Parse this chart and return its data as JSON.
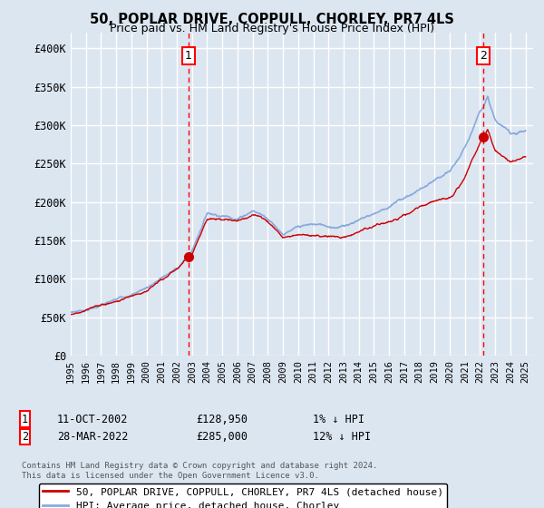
{
  "title": "50, POPLAR DRIVE, COPPULL, CHORLEY, PR7 4LS",
  "subtitle": "Price paid vs. HM Land Registry's House Price Index (HPI)",
  "background_color": "#dce6f1",
  "plot_bg_color": "#dce6f1",
  "grid_color": "#ffffff",
  "ylim": [
    0,
    420000
  ],
  "yticks": [
    0,
    50000,
    100000,
    150000,
    200000,
    250000,
    300000,
    350000,
    400000
  ],
  "ytick_labels": [
    "£0",
    "£50K",
    "£100K",
    "£150K",
    "£200K",
    "£250K",
    "£300K",
    "£350K",
    "£400K"
  ],
  "xstart": 1995.0,
  "xend": 2025.5,
  "red_line_color": "#cc0000",
  "blue_line_color": "#88aadd",
  "marker1_date": 2002.78,
  "marker1_value": 128950,
  "marker1_label": "1",
  "marker1_text": "11-OCT-2002",
  "marker1_price": "£128,950",
  "marker1_hpi": "1% ↓ HPI",
  "marker2_date": 2022.23,
  "marker2_value": 285000,
  "marker2_label": "2",
  "marker2_text": "28-MAR-2022",
  "marker2_price": "£285,000",
  "marker2_hpi": "12% ↓ HPI",
  "legend_line1": "50, POPLAR DRIVE, COPPULL, CHORLEY, PR7 4LS (detached house)",
  "legend_line2": "HPI: Average price, detached house, Chorley",
  "footer1": "Contains HM Land Registry data © Crown copyright and database right 2024.",
  "footer2": "This data is licensed under the Open Government Licence v3.0."
}
